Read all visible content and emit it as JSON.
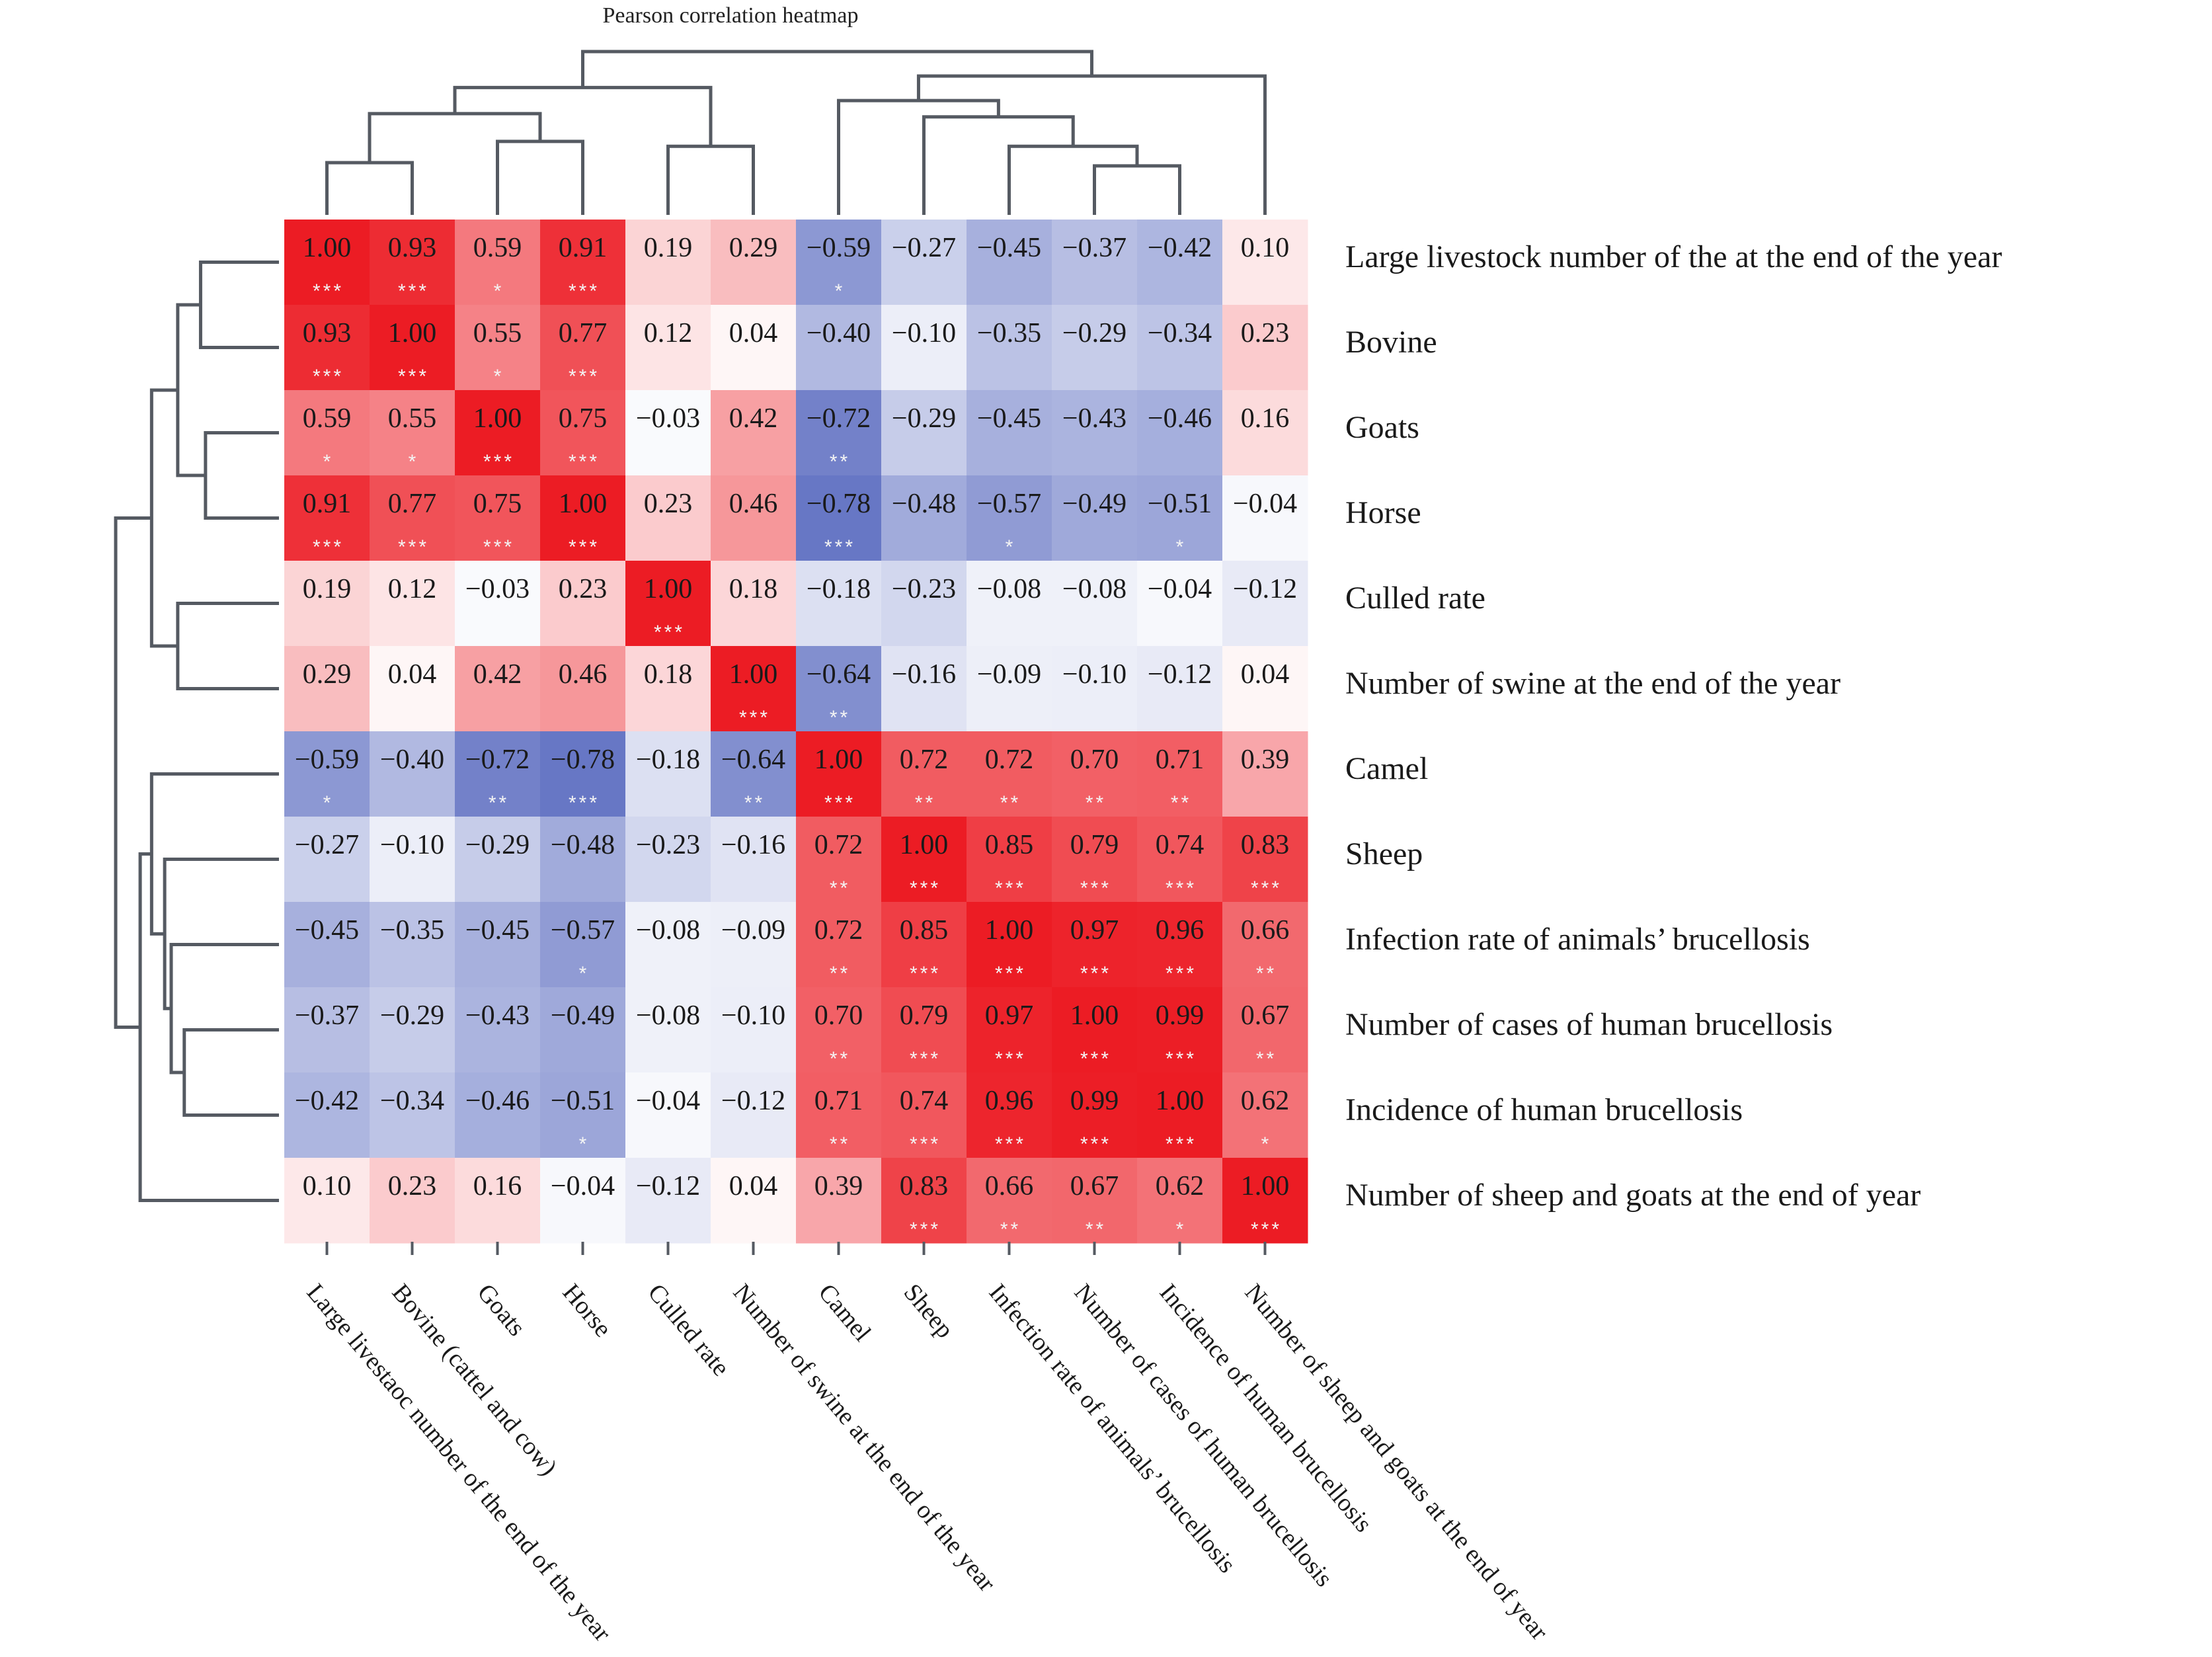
{
  "chart_data": {
    "type": "heatmap",
    "title": "Pearson correlation heatmap",
    "row_labels": [
      "Large livestock number of the at the end of the year",
      "Bovine",
      "Goats",
      "Horse",
      "Culled rate",
      "Number of swine at the end of the year",
      "Camel",
      "Sheep",
      "Infection rate of animals’ brucellosis",
      "Number of cases of human brucellosis",
      "Incidence of human brucellosis",
      "Number of sheep and goats at the end of year"
    ],
    "col_labels": [
      "Large livestaoc number of the end of the year",
      "Bovine (cattel and cow)",
      "Goats",
      "Horse",
      "Culled rate",
      "Number of swine at the end of the year",
      "Camel",
      "Sheep",
      "Infection rate of animals’ brucellosis",
      "Number of cases of human brucellosis",
      "Incidence of human brucellosis",
      "Number of sheep and goats at the end of year"
    ],
    "values": [
      [
        1.0,
        0.93,
        0.59,
        0.91,
        0.19,
        0.29,
        -0.59,
        -0.27,
        -0.45,
        -0.37,
        -0.42,
        0.1
      ],
      [
        0.93,
        1.0,
        0.55,
        0.77,
        0.12,
        0.04,
        -0.4,
        -0.1,
        -0.35,
        -0.29,
        -0.34,
        0.23
      ],
      [
        0.59,
        0.55,
        1.0,
        0.75,
        -0.03,
        0.42,
        -0.72,
        -0.29,
        -0.45,
        -0.43,
        -0.46,
        0.16
      ],
      [
        0.91,
        0.77,
        0.75,
        1.0,
        0.23,
        0.46,
        -0.78,
        -0.48,
        -0.57,
        -0.49,
        -0.51,
        -0.04
      ],
      [
        0.19,
        0.12,
        -0.03,
        0.23,
        1.0,
        0.18,
        -0.18,
        -0.23,
        -0.08,
        -0.08,
        -0.04,
        -0.12
      ],
      [
        0.29,
        0.04,
        0.42,
        0.46,
        0.18,
        1.0,
        -0.64,
        -0.16,
        -0.09,
        -0.1,
        -0.12,
        0.04
      ],
      [
        -0.59,
        -0.4,
        -0.72,
        -0.78,
        -0.18,
        -0.64,
        1.0,
        0.72,
        0.72,
        0.7,
        0.71,
        0.39
      ],
      [
        -0.27,
        -0.1,
        -0.29,
        -0.48,
        -0.23,
        -0.16,
        0.72,
        1.0,
        0.85,
        0.79,
        0.74,
        0.83
      ],
      [
        -0.45,
        -0.35,
        -0.45,
        -0.57,
        -0.08,
        -0.09,
        0.72,
        0.85,
        1.0,
        0.97,
        0.96,
        0.66
      ],
      [
        -0.37,
        -0.29,
        -0.43,
        -0.49,
        -0.08,
        -0.1,
        0.7,
        0.79,
        0.97,
        1.0,
        0.99,
        0.67
      ],
      [
        -0.42,
        -0.34,
        -0.46,
        -0.51,
        -0.04,
        -0.12,
        0.71,
        0.74,
        0.96,
        0.99,
        1.0,
        0.62
      ],
      [
        0.1,
        0.23,
        0.16,
        -0.04,
        -0.12,
        0.04,
        0.39,
        0.83,
        0.66,
        0.67,
        0.62,
        1.0
      ]
    ],
    "significance": [
      [
        "***",
        "***",
        "*",
        "***",
        "",
        "",
        "*",
        "",
        "",
        "",
        "",
        ""
      ],
      [
        "***",
        "***",
        "*",
        "***",
        "",
        "",
        "",
        "",
        "",
        "",
        "",
        ""
      ],
      [
        "*",
        "*",
        "***",
        "***",
        "",
        "",
        "**",
        "",
        "",
        "",
        "",
        ""
      ],
      [
        "***",
        "***",
        "***",
        "***",
        "",
        "",
        "***",
        "",
        "*",
        "",
        "*",
        ""
      ],
      [
        "",
        "",
        "",
        "",
        "***",
        "",
        "",
        "",
        "",
        "",
        "",
        ""
      ],
      [
        "",
        "",
        "",
        "",
        "",
        "***",
        "**",
        "",
        "",
        "",
        "",
        ""
      ],
      [
        "*",
        "",
        "**",
        "***",
        "",
        "**",
        "***",
        "**",
        "**",
        "**",
        "**",
        ""
      ],
      [
        "",
        "",
        "",
        "",
        "",
        "",
        "**",
        "***",
        "***",
        "***",
        "***",
        "***"
      ],
      [
        "",
        "",
        "",
        "*",
        "",
        "",
        "**",
        "***",
        "***",
        "***",
        "***",
        "**"
      ],
      [
        "",
        "",
        "",
        "",
        "",
        "",
        "**",
        "***",
        "***",
        "***",
        "***",
        "**"
      ],
      [
        "",
        "",
        "",
        "*",
        "",
        "",
        "**",
        "***",
        "***",
        "***",
        "***",
        "*"
      ],
      [
        "",
        "",
        "",
        "",
        "",
        "",
        "",
        "***",
        "**",
        "**",
        "*",
        "***"
      ]
    ],
    "color_scale": {
      "min": -1,
      "max": 1,
      "low": "#3c50b4",
      "mid": "#ffffff",
      "high": "#ec1c24"
    },
    "dendrogram": "rows and columns hierarchically clustered"
  }
}
